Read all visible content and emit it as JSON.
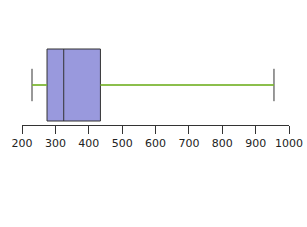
{
  "chart_data": {
    "type": "box",
    "orientation": "horizontal",
    "min": 230,
    "q1": 275,
    "median": 325,
    "q3": 435,
    "max": 955,
    "color": "#9999dd",
    "xlim": [
      200,
      1000
    ],
    "xticks": [
      200,
      300,
      400,
      500,
      600,
      700,
      800,
      900,
      1000
    ],
    "grid": false,
    "tick_labels": "x"
  }
}
